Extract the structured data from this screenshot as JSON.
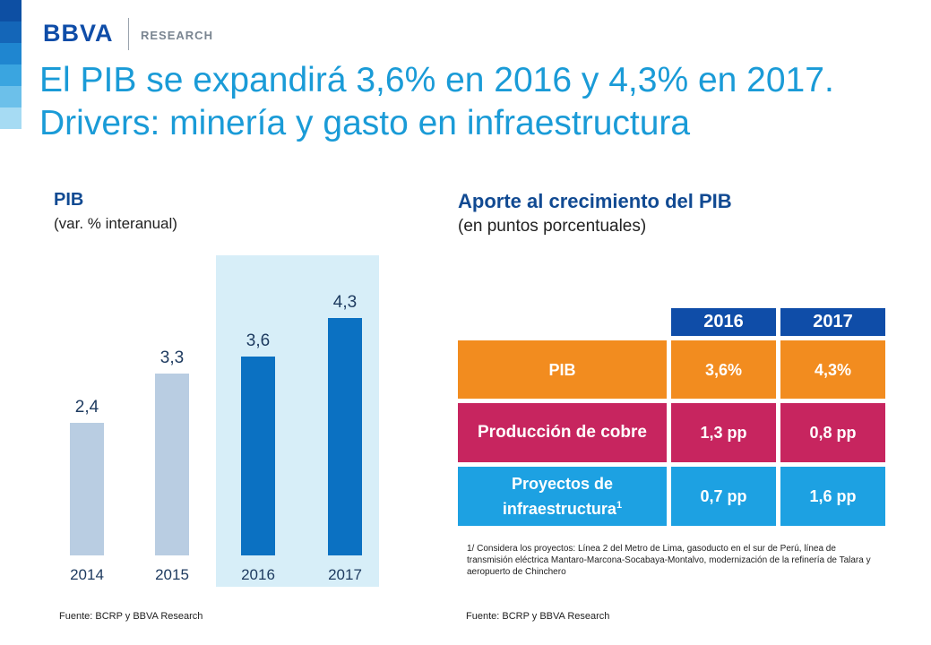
{
  "header": {
    "logo": "BBVA",
    "research": "RESEARCH",
    "title": "El PIB se expandirá 3,6% en 2016 y 4,3% en 2017. Drivers: minería y gasto en infraestructura"
  },
  "colors": {
    "stripe": [
      "#0d4fa3",
      "#1466b8",
      "#1f86d0",
      "#3aa5e0",
      "#6cc0ea",
      "#a6dbf3"
    ],
    "bar_past": "#b9cde2",
    "bar_forecast": "#0b71c2",
    "highlight": "#d7eef8",
    "row_pib": "#f28c1f",
    "row_cobre": "#c7255f",
    "row_infra": "#1da1e2"
  },
  "chart_data": [
    {
      "type": "bar",
      "title": "PIB",
      "subtitle": "(var. % interanual)",
      "categories": [
        "2014",
        "2015",
        "2016",
        "2017"
      ],
      "values": [
        2.4,
        3.3,
        3.6,
        4.3
      ],
      "value_labels": [
        "2,4",
        "3,3",
        "3,6",
        "4,3"
      ],
      "forecast": [
        false,
        false,
        true,
        true
      ],
      "ylim": [
        0,
        5
      ],
      "source": "Fuente: BCRP y BBVA Research"
    },
    {
      "type": "table",
      "title": "Aporte al crecimiento del PIB",
      "subtitle": "(en puntos porcentuales)",
      "columns": [
        "2016",
        "2017"
      ],
      "rows": [
        {
          "label": "PIB",
          "values": [
            "3,6%",
            "4,3%"
          ]
        },
        {
          "label": "Producción de cobre",
          "values": [
            "1,3 pp",
            "0,8 pp"
          ]
        },
        {
          "label": "Proyectos de infraestructura",
          "footnote_mark": "1",
          "values": [
            "0,7 pp",
            "1,6 pp"
          ]
        }
      ],
      "footnote": "1/ Considera los proyectos: Línea 2 del Metro de Lima, gasoducto en el sur de Perú, línea de transmisión eléctrica Mantaro-Marcona-Socabaya-Montalvo, modernización de la refinería de Talara y aeropuerto de Chinchero",
      "source": "Fuente: BCRP y BBVA Research"
    }
  ]
}
